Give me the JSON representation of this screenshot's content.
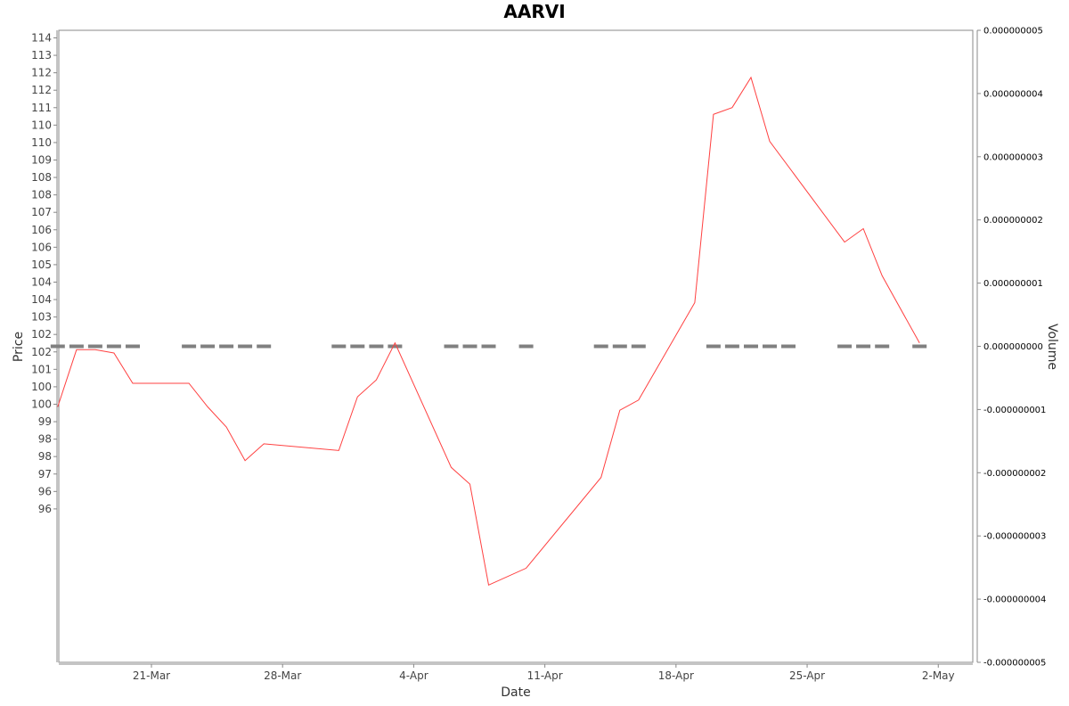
{
  "chart_data": {
    "type": "line",
    "title": "AARVI",
    "xlabel": "Date",
    "ylabel": "Price",
    "y2label": "Volume",
    "x_ticks": [
      "21-Mar",
      "28-Mar",
      "4-Apr",
      "11-Apr",
      "18-Apr",
      "25-Apr",
      "2-May"
    ],
    "y_ticks": [
      "114",
      "113",
      "112",
      "112",
      "111",
      "110",
      "110",
      "109",
      "108",
      "108",
      "107",
      "106",
      "106",
      "105",
      "104",
      "104",
      "103",
      "102",
      "102",
      "101",
      "100",
      "100",
      "99",
      "98",
      "98",
      "97",
      "96",
      "96"
    ],
    "y2_ticks": [
      "0.000000005",
      "0.000000004",
      "0.000000003",
      "0.000000002",
      "0.000000001",
      "0.000000000",
      "-0.000000001",
      "-0.000000002",
      "-0.000000003",
      "-0.000000004",
      "-0.000000005"
    ],
    "ylim": [
      95.6,
      114.4
    ],
    "y2lim": [
      -5e-09,
      5e-09
    ],
    "grid": false,
    "series": [
      {
        "type": "line",
        "color": "#ff4040",
        "points": [
          {
            "x": "2024-03-16",
            "y": 103.2
          },
          {
            "x": "2024-03-17",
            "y": 104.9
          },
          {
            "x": "2024-03-18",
            "y": 104.9
          },
          {
            "x": "2024-03-19",
            "y": 104.8
          },
          {
            "x": "2024-03-20",
            "y": 103.9
          },
          {
            "x": "2024-03-23",
            "y": 103.9
          },
          {
            "x": "2024-03-24",
            "y": 103.2
          },
          {
            "x": "2024-03-25",
            "y": 102.6
          },
          {
            "x": "2024-03-26",
            "y": 101.6
          },
          {
            "x": "2024-03-27",
            "y": 102.1
          },
          {
            "x": "2024-03-31",
            "y": 101.9
          },
          {
            "x": "2024-04-01",
            "y": 103.5
          },
          {
            "x": "2024-04-02",
            "y": 104.0
          },
          {
            "x": "2024-04-03",
            "y": 105.1
          },
          {
            "x": "2024-04-06",
            "y": 101.4
          },
          {
            "x": "2024-04-07",
            "y": 100.9
          },
          {
            "x": "2024-04-08",
            "y": 97.9
          },
          {
            "x": "2024-04-10",
            "y": 98.4
          },
          {
            "x": "2024-04-14",
            "y": 101.1
          },
          {
            "x": "2024-04-15",
            "y": 103.1
          },
          {
            "x": "2024-04-16",
            "y": 103.4
          },
          {
            "x": "2024-04-19",
            "y": 106.3
          },
          {
            "x": "2024-04-20",
            "y": 111.9
          },
          {
            "x": "2024-04-21",
            "y": 112.1
          },
          {
            "x": "2024-04-22",
            "y": 113.0
          },
          {
            "x": "2024-04-23",
            "y": 111.1
          },
          {
            "x": "2024-04-27",
            "y": 108.1
          },
          {
            "x": "2024-04-28",
            "y": 108.5
          },
          {
            "x": "2024-04-29",
            "y": 107.1
          },
          {
            "x": "2024-05-01",
            "y": 105.1
          }
        ]
      },
      {
        "type": "bar",
        "axis": "right",
        "color": "#808080",
        "points": [
          {
            "x": "2024-03-16",
            "y": 0
          },
          {
            "x": "2024-03-17",
            "y": 0
          },
          {
            "x": "2024-03-18",
            "y": 0
          },
          {
            "x": "2024-03-19",
            "y": 0
          },
          {
            "x": "2024-03-20",
            "y": 0
          },
          {
            "x": "2024-03-23",
            "y": 0
          },
          {
            "x": "2024-03-24",
            "y": 0
          },
          {
            "x": "2024-03-25",
            "y": 0
          },
          {
            "x": "2024-03-26",
            "y": 0
          },
          {
            "x": "2024-03-27",
            "y": 0
          },
          {
            "x": "2024-03-31",
            "y": 0
          },
          {
            "x": "2024-04-01",
            "y": 0
          },
          {
            "x": "2024-04-02",
            "y": 0
          },
          {
            "x": "2024-04-03",
            "y": 0
          },
          {
            "x": "2024-04-06",
            "y": 0
          },
          {
            "x": "2024-04-07",
            "y": 0
          },
          {
            "x": "2024-04-08",
            "y": 0
          },
          {
            "x": "2024-04-10",
            "y": 0
          },
          {
            "x": "2024-04-14",
            "y": 0
          },
          {
            "x": "2024-04-15",
            "y": 0
          },
          {
            "x": "2024-04-16",
            "y": 0
          },
          {
            "x": "2024-04-20",
            "y": 0
          },
          {
            "x": "2024-04-21",
            "y": 0
          },
          {
            "x": "2024-04-22",
            "y": 0
          },
          {
            "x": "2024-04-23",
            "y": 0
          },
          {
            "x": "2024-04-24",
            "y": 0
          },
          {
            "x": "2024-04-27",
            "y": 0
          },
          {
            "x": "2024-04-28",
            "y": 0
          },
          {
            "x": "2024-04-29",
            "y": 0
          },
          {
            "x": "2024-05-01",
            "y": 0
          }
        ]
      }
    ]
  }
}
